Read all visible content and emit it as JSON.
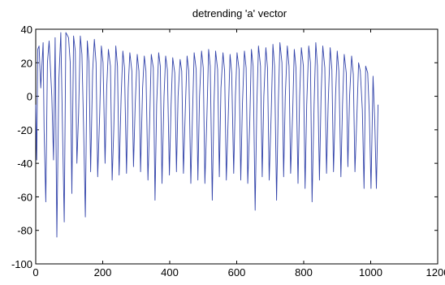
{
  "chart_data": {
    "type": "line",
    "title": "detrending 'a' vector",
    "xlabel": "",
    "ylabel": "",
    "xlim": [
      0,
      1200
    ],
    "ylim": [
      -100,
      40
    ],
    "xticks": [
      0,
      200,
      400,
      600,
      800,
      1000,
      1200
    ],
    "yticks": [
      -100,
      -80,
      -60,
      -40,
      -20,
      0,
      20,
      40
    ],
    "xtick_labels": [
      "0",
      "200",
      "400",
      "600",
      "800",
      "1000",
      "1200"
    ],
    "ytick_labels": [
      "-100",
      "-80",
      "-60",
      "-40",
      "-20",
      "0",
      "20",
      "40"
    ],
    "grid": false,
    "line_color": "#3344aa",
    "series": [
      {
        "x": [
          0,
          3,
          6,
          10,
          15,
          22,
          25,
          30,
          35,
          40,
          48,
          53,
          58,
          63,
          69,
          75,
          80,
          85,
          90,
          98,
          103,
          108,
          113,
          118,
          123,
          128,
          133,
          138,
          143,
          148,
          154,
          159,
          164,
          170,
          175,
          180,
          185,
          191,
          196,
          201,
          207,
          212,
          217,
          223,
          228,
          233,
          239,
          244,
          249,
          255,
          260,
          265,
          271,
          276,
          281,
          287,
          292,
          297,
          303,
          308,
          313,
          319,
          324,
          329,
          335,
          340,
          345,
          351,
          356,
          361,
          367,
          372,
          377,
          383,
          388,
          393,
          399,
          404,
          409,
          415,
          420,
          425,
          431,
          436,
          441,
          447,
          452,
          457,
          463,
          468,
          473,
          479,
          484,
          489,
          495,
          500,
          505,
          511,
          516,
          521,
          527,
          532,
          537,
          543,
          548,
          553,
          559,
          564,
          569,
          575,
          580,
          585,
          591,
          596,
          601,
          607,
          612,
          617,
          623,
          628,
          633,
          639,
          644,
          649,
          655,
          660,
          665,
          671,
          676,
          681,
          687,
          692,
          697,
          703,
          708,
          713,
          719,
          724,
          729,
          735,
          740,
          745,
          751,
          756,
          761,
          767,
          772,
          777,
          783,
          788,
          793,
          799,
          804,
          809,
          815,
          820,
          825,
          831,
          836,
          841,
          847,
          852,
          857,
          863,
          868,
          873,
          879,
          884,
          889,
          895,
          900,
          905,
          911,
          916,
          921,
          927,
          932,
          937,
          943,
          948,
          953,
          959,
          964,
          969,
          975,
          980,
          985,
          991,
          996,
          1001,
          1007,
          1012,
          1017,
          1022
        ],
        "y": [
          -5,
          -38,
          28,
          30,
          5,
          32,
          -20,
          -63,
          20,
          33,
          0,
          -38,
          35,
          -84,
          10,
          38,
          -20,
          -75,
          38,
          35,
          20,
          -58,
          36,
          27,
          -40,
          -10,
          36,
          25,
          -20,
          -72,
          33,
          20,
          -45,
          15,
          34,
          20,
          -48,
          -10,
          30,
          20,
          -40,
          5,
          28,
          18,
          -50,
          -20,
          30,
          18,
          -47,
          0,
          27,
          17,
          -46,
          5,
          26,
          15,
          -42,
          -5,
          25,
          15,
          -45,
          5,
          24,
          15,
          -50,
          -15,
          25,
          17,
          -62,
          -5,
          26,
          18,
          -52,
          0,
          24,
          16,
          -47,
          -5,
          23,
          14,
          -45,
          0,
          22,
          15,
          -46,
          -5,
          24,
          15,
          -52,
          -10,
          26,
          16,
          -50,
          0,
          27,
          17,
          -52,
          -12,
          28,
          18,
          -62,
          -5,
          27,
          16,
          -48,
          5,
          26,
          15,
          -50,
          -10,
          25,
          14,
          -46,
          0,
          26,
          16,
          -50,
          -5,
          27,
          17,
          -52,
          -15,
          28,
          18,
          -68,
          -5,
          30,
          18,
          -48,
          0,
          29,
          17,
          -50,
          -10,
          31,
          18,
          -62,
          -5,
          32,
          20,
          -48,
          0,
          30,
          18,
          -46,
          -10,
          28,
          17,
          -52,
          0,
          29,
          18,
          -55,
          -5,
          30,
          20,
          -63,
          -5,
          32,
          18,
          -50,
          0,
          30,
          17,
          -46,
          -5,
          29,
          16,
          -45,
          0,
          27,
          15,
          -48,
          -5,
          25,
          14,
          -42,
          0,
          24,
          13,
          -45,
          -10,
          20,
          15,
          -8,
          -55,
          18,
          14,
          -10,
          -55,
          12,
          -15,
          -55,
          -5
        ]
      }
    ]
  }
}
